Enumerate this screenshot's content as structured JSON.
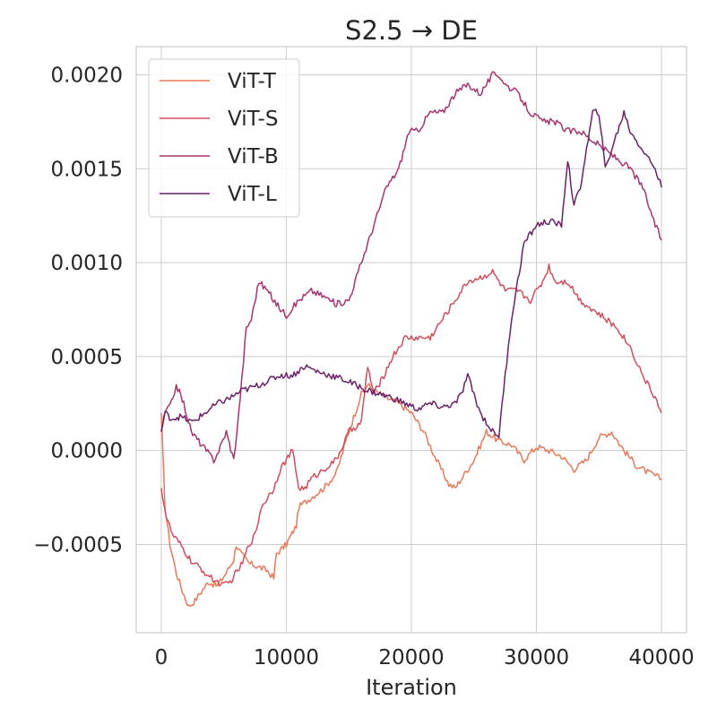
{
  "chart_data": {
    "type": "line",
    "title": "S2.5 → DE",
    "xlabel": "Iteration",
    "ylabel": "",
    "xlim": [
      -2000,
      42000
    ],
    "ylim": [
      -0.00097,
      0.00215
    ],
    "x_ticks": [
      0,
      10000,
      20000,
      30000,
      40000
    ],
    "x_tick_labels": [
      "0",
      "10000",
      "20000",
      "30000",
      "40000"
    ],
    "y_ticks": [
      -0.0005,
      0.0,
      0.0005,
      0.001,
      0.0015,
      0.002
    ],
    "y_tick_labels": [
      "−0.0005",
      "0.0000",
      "0.0005",
      "0.0010",
      "0.0015",
      "0.0020"
    ],
    "grid": true,
    "legend_position": "top-left",
    "series": [
      {
        "name": "ViT-T",
        "color": "#e8795a",
        "x": [
          0,
          300,
          700,
          1200,
          1700,
          2200,
          2700,
          3200,
          3800,
          4500,
          5200,
          5800,
          6000,
          6400,
          7000,
          7800,
          8500,
          9000,
          9200,
          10000,
          10800,
          11000,
          12000,
          13000,
          14000,
          15000,
          15500,
          16000,
          16500,
          17000,
          18000,
          19000,
          20000,
          21000,
          22000,
          23000,
          23500,
          24000,
          25000,
          26000,
          27000,
          28000,
          29000,
          30000,
          31000,
          32000,
          33000,
          34000,
          35000,
          36000,
          37000,
          38000,
          39000,
          40000
        ],
        "y": [
          0.0002,
          -0.0003,
          -0.0005,
          -0.00065,
          -0.00075,
          -0.00083,
          -0.0008,
          -0.00075,
          -0.0007,
          -0.00072,
          -0.00065,
          -0.00058,
          -0.0005,
          -0.00055,
          -0.0006,
          -0.00062,
          -0.00064,
          -0.00068,
          -0.00055,
          -0.0005,
          -0.0004,
          -0.0003,
          -0.00025,
          -0.0002,
          -0.00012,
          0.0001,
          0.0002,
          0.0003,
          0.00035,
          0.00032,
          0.00028,
          0.00025,
          0.0002,
          0.0001,
          -5e-05,
          -0.00018,
          -0.0002,
          -0.00015,
          -5e-05,
          0.0001,
          5e-05,
          3e-05,
          -5e-05,
          2e-05,
          0.0,
          -3e-05,
          -0.0001,
          -5e-05,
          7e-05,
          0.0001,
          0.0,
          -8e-05,
          -0.00012,
          -0.00015
        ]
      },
      {
        "name": "ViT-S",
        "color": "#d24e5e",
        "x": [
          0,
          400,
          900,
          1500,
          2000,
          2500,
          3000,
          3500,
          4000,
          4500,
          5000,
          5500,
          6000,
          6500,
          7000,
          7500,
          8000,
          9000,
          9500,
          10000,
          10500,
          11000,
          11500,
          12000,
          13000,
          14000,
          15000,
          16000,
          16500,
          17000,
          17800,
          18500,
          19500,
          20500,
          21500,
          22500,
          23500,
          24500,
          25500,
          26500,
          27500,
          28500,
          29500,
          30500,
          31000,
          31500,
          32500,
          33500,
          34500,
          35500,
          36500,
          37500,
          38500,
          39500,
          40000
        ],
        "y": [
          -0.0002,
          -0.00035,
          -0.00045,
          -0.0005,
          -0.00055,
          -0.0006,
          -0.00062,
          -0.00065,
          -0.00068,
          -0.0007,
          -0.00072,
          -0.0007,
          -0.00065,
          -0.0006,
          -0.0005,
          -0.00045,
          -0.0003,
          -0.0002,
          -0.0001,
          -5e-05,
          0.0,
          -0.0002,
          -0.0002,
          -0.00015,
          -0.0001,
          -5e-05,
          0.0001,
          0.00015,
          0.00045,
          0.0003,
          0.0004,
          0.0005,
          0.0006,
          0.0006,
          0.0006,
          0.0007,
          0.0008,
          0.0009,
          0.00092,
          0.00095,
          0.00085,
          0.00085,
          0.0008,
          0.0009,
          0.00098,
          0.0009,
          0.0009,
          0.0008,
          0.00075,
          0.0007,
          0.00065,
          0.00055,
          0.0004,
          0.00028,
          0.0002
        ]
      },
      {
        "name": "ViT-B",
        "color": "#a8346f",
        "x": [
          0,
          300,
          800,
          1200,
          1800,
          2400,
          3000,
          3600,
          4200,
          4600,
          5200,
          5800,
          6200,
          6800,
          7200,
          7800,
          8500,
          9200,
          10000,
          11000,
          12000,
          13000,
          14000,
          15000,
          15500,
          16000,
          17000,
          18000,
          19000,
          19800,
          20500,
          21500,
          22500,
          23500,
          24500,
          25500,
          26500,
          27000,
          27500,
          28500,
          29500,
          30500,
          31500,
          32500,
          33500,
          34500,
          35500,
          36500,
          37500,
          38500,
          39500,
          40000
        ],
        "y": [
          0.0001,
          0.0002,
          0.00025,
          0.00035,
          0.00025,
          0.0001,
          5e-05,
          0.0,
          -5e-05,
          -0.0,
          0.0001,
          -5e-05,
          0.0002,
          0.00065,
          0.0007,
          0.0009,
          0.00085,
          0.00078,
          0.00072,
          0.0008,
          0.00085,
          0.00082,
          0.00078,
          0.0008,
          0.0009,
          0.001,
          0.0012,
          0.0014,
          0.0015,
          0.0017,
          0.0017,
          0.0018,
          0.0018,
          0.0019,
          0.00195,
          0.0019,
          0.002,
          0.002,
          0.00195,
          0.0019,
          0.0018,
          0.00175,
          0.00175,
          0.0017,
          0.0017,
          0.00165,
          0.0016,
          0.00155,
          0.0015,
          0.0014,
          0.0012,
          0.00112
        ]
      },
      {
        "name": "ViT-L",
        "color": "#6b2168",
        "x": [
          0,
          300,
          800,
          1500,
          2500,
          3500,
          4500,
          5500,
          6500,
          7500,
          8500,
          9500,
          10500,
          11500,
          12500,
          13500,
          14500,
          15500,
          16500,
          17500,
          18500,
          19500,
          20500,
          21500,
          22500,
          23500,
          24000,
          24500,
          25500,
          26500,
          27000,
          27500,
          28000,
          28500,
          29000,
          30000,
          31000,
          32000,
          32500,
          33000,
          33500,
          34500,
          35000,
          35500,
          36500,
          37000,
          37500,
          38500,
          39500,
          40000
        ],
        "y": [
          0.0001,
          0.0002,
          0.00017,
          0.00018,
          0.00015,
          0.0002,
          0.00025,
          0.00028,
          0.00032,
          0.00034,
          0.00037,
          0.0004,
          0.0004,
          0.00045,
          0.00042,
          0.0004,
          0.00038,
          0.00035,
          0.00032,
          0.0003,
          0.00028,
          0.00025,
          0.00022,
          0.00025,
          0.00023,
          0.00025,
          0.0003,
          0.0004,
          0.0002,
          0.0001,
          8e-05,
          0.0004,
          0.0007,
          0.0009,
          0.0011,
          0.0012,
          0.00122,
          0.0012,
          0.00155,
          0.0013,
          0.0014,
          0.0018,
          0.0018,
          0.0015,
          0.0017,
          0.0018,
          0.0017,
          0.0016,
          0.0015,
          0.0014
        ]
      }
    ]
  }
}
